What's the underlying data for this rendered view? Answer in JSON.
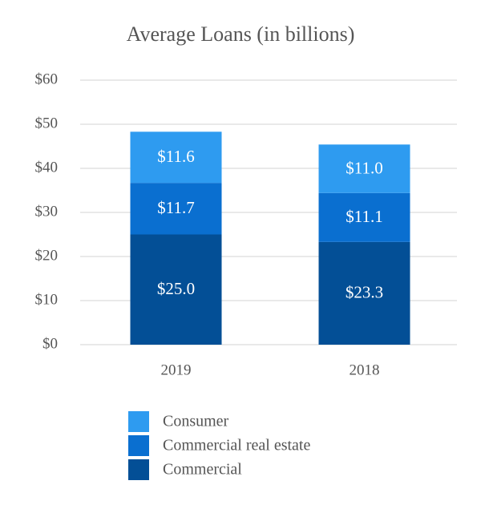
{
  "chart_data": {
    "type": "stacked_bar",
    "title": "Average Loans (in billions)",
    "categories": [
      "2019",
      "2018"
    ],
    "series": [
      {
        "name": "Commercial",
        "color": "#034f96",
        "values": [
          25.0,
          23.3
        ],
        "value_labels": [
          "$25.0",
          "$23.3"
        ]
      },
      {
        "name": "Commercial real estate",
        "color": "#0a6fd0",
        "values": [
          11.7,
          11.1
        ],
        "value_labels": [
          "$11.7",
          "$11.1"
        ]
      },
      {
        "name": "Consumer",
        "color": "#2e9bf0",
        "values": [
          11.6,
          11.0
        ],
        "value_labels": [
          "$11.6",
          "$11.0"
        ]
      }
    ],
    "ylim": [
      0,
      60
    ],
    "yticks": [
      {
        "value": 0,
        "label": "$0"
      },
      {
        "value": 10,
        "label": "$10"
      },
      {
        "value": 20,
        "label": "$20"
      },
      {
        "value": 30,
        "label": "$30"
      },
      {
        "value": 40,
        "label": "$40"
      },
      {
        "value": 50,
        "label": "$50"
      },
      {
        "value": 60,
        "label": "$60"
      }
    ],
    "grid": true
  }
}
